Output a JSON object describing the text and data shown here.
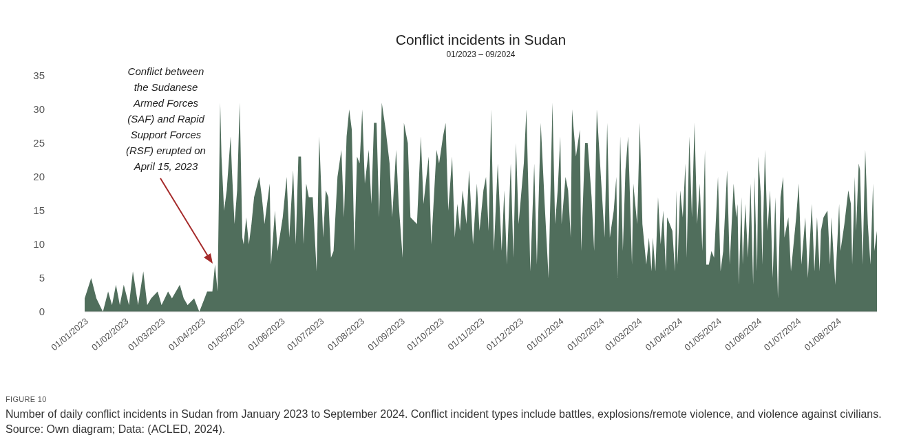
{
  "chart_data": {
    "type": "area",
    "title": "Conflict incidents in Sudan",
    "subtitle": "01/2023 – 09/2024",
    "annotations": [
      "Conflict between the Sudanese Armed Forces (SAF) and Rapid Support Forces (RSF) erupted on April 15, 2023",
      "FIGURE 10",
      "Number of daily conflict incidents in Sudan from January 2023 to September 2024. Conflict incident types include battles, explosions/remote violence, and violence against civilians. Source: Own diagram; Data: (ACLED, 2024)."
    ],
    "x": [
      "2023-01-01",
      "2023-01-06",
      "2023-01-10",
      "2023-01-15",
      "2023-01-19",
      "2023-01-22",
      "2023-01-25",
      "2023-01-28",
      "2023-01-31",
      "2023-02-04",
      "2023-02-07",
      "2023-02-11",
      "2023-02-15",
      "2023-02-18",
      "2023-02-21",
      "2023-02-26",
      "2023-03-01",
      "2023-03-06",
      "2023-03-09",
      "2023-03-15",
      "2023-03-18",
      "2023-03-21",
      "2023-03-26",
      "2023-03-30",
      "2023-04-03",
      "2023-04-05",
      "2023-04-09",
      "2023-04-11",
      "2023-04-13",
      "2023-04-15",
      "2023-04-16",
      "2023-04-18",
      "2023-04-20",
      "2023-04-23",
      "2023-04-24",
      "2023-04-26",
      "2023-04-28",
      "2023-04-30",
      "2023-05-02",
      "2023-05-03",
      "2023-05-05",
      "2023-05-07",
      "2023-05-09",
      "2023-05-11",
      "2023-05-15",
      "2023-05-17",
      "2023-05-19",
      "2023-05-23",
      "2023-05-24",
      "2023-05-27",
      "2023-05-29",
      "2023-06-02",
      "2023-06-05",
      "2023-06-07",
      "2023-06-10",
      "2023-06-12",
      "2023-06-14",
      "2023-06-16",
      "2023-06-18",
      "2023-06-20",
      "2023-06-22",
      "2023-06-25",
      "2023-06-28",
      "2023-06-30",
      "2023-07-03",
      "2023-07-05",
      "2023-07-07",
      "2023-07-09",
      "2023-07-11",
      "2023-07-14",
      "2023-07-17",
      "2023-07-19",
      "2023-07-21",
      "2023-07-23",
      "2023-07-25",
      "2023-07-27",
      "2023-07-29",
      "2023-07-31",
      "2023-08-02",
      "2023-08-04",
      "2023-08-07",
      "2023-08-09",
      "2023-08-11",
      "2023-08-13",
      "2023-08-15",
      "2023-08-17",
      "2023-08-20",
      "2023-08-23",
      "2023-08-25",
      "2023-08-28",
      "2023-08-30",
      "2023-09-02",
      "2023-09-03",
      "2023-09-06",
      "2023-09-08",
      "2023-09-13",
      "2023-09-16",
      "2023-09-18",
      "2023-09-22",
      "2023-09-24",
      "2023-09-28",
      "2023-09-30",
      "2023-10-03",
      "2023-10-05",
      "2023-10-07",
      "2023-10-10",
      "2023-10-12",
      "2023-10-14",
      "2023-10-16",
      "2023-10-18",
      "2023-10-21",
      "2023-10-23",
      "2023-10-26",
      "2023-10-29",
      "2023-10-31",
      "2023-11-03",
      "2023-11-05",
      "2023-11-07",
      "2023-11-09",
      "2023-11-11",
      "2023-11-14",
      "2023-11-17",
      "2023-11-19",
      "2023-11-21",
      "2023-11-24",
      "2023-11-26",
      "2023-11-28",
      "2023-11-30",
      "2023-12-04",
      "2023-12-06",
      "2023-12-09",
      "2023-12-12",
      "2023-12-14",
      "2023-12-17",
      "2023-12-20",
      "2023-12-23",
      "2023-12-26",
      "2023-12-28",
      "2023-12-30",
      "2024-01-01",
      "2024-01-02",
      "2024-01-05",
      "2024-01-07",
      "2024-01-09",
      "2024-01-10",
      "2024-01-13",
      "2024-01-16",
      "2024-01-17",
      "2024-01-20",
      "2024-01-22",
      "2024-01-25",
      "2024-01-27",
      "2024-01-29",
      "2024-02-04",
      "2024-02-06",
      "2024-02-08",
      "2024-02-11",
      "2024-02-13",
      "2024-02-14",
      "2024-02-16",
      "2024-02-18",
      "2024-02-20",
      "2024-02-22",
      "2024-02-23",
      "2024-02-25",
      "2024-02-26",
      "2024-02-29",
      "2024-03-02",
      "2024-03-04",
      "2024-03-07",
      "2024-03-09",
      "2024-03-11",
      "2024-03-12",
      "2024-03-14",
      "2024-03-16",
      "2024-03-18",
      "2024-03-20",
      "2024-03-22",
      "2024-03-23",
      "2024-03-27",
      "2024-03-29",
      "2024-03-30",
      "2024-03-31",
      "2024-04-02",
      "2024-04-04",
      "2024-04-06",
      "2024-04-07",
      "2024-04-09",
      "2024-04-11",
      "2024-04-13",
      "2024-04-15",
      "2024-04-17",
      "2024-04-19",
      "2024-04-21",
      "2024-04-22",
      "2024-04-24",
      "2024-04-26",
      "2024-04-28",
      "2024-05-01",
      "2024-05-03",
      "2024-05-05",
      "2024-05-08",
      "2024-05-10",
      "2024-05-13",
      "2024-05-15",
      "2024-05-16",
      "2024-05-17",
      "2024-05-19",
      "2024-05-20",
      "2024-05-22",
      "2024-05-24",
      "2024-05-26",
      "2024-05-28",
      "2024-05-29",
      "2024-05-31",
      "2024-06-01",
      "2024-06-03",
      "2024-06-04",
      "2024-06-06",
      "2024-06-08",
      "2024-06-10",
      "2024-06-12",
      "2024-06-14",
      "2024-06-16",
      "2024-06-18",
      "2024-06-20",
      "2024-06-21",
      "2024-06-24",
      "2024-06-26",
      "2024-06-30",
      "2024-07-02",
      "2024-07-04",
      "2024-07-07",
      "2024-07-09",
      "2024-07-12",
      "2024-07-14",
      "2024-07-16",
      "2024-07-18",
      "2024-07-19",
      "2024-07-21",
      "2024-07-24",
      "2024-07-26",
      "2024-07-27",
      "2024-07-30",
      "2024-08-02",
      "2024-08-03",
      "2024-08-06",
      "2024-08-09",
      "2024-08-11",
      "2024-08-12",
      "2024-08-14",
      "2024-08-15",
      "2024-08-17",
      "2024-08-18",
      "2024-08-20",
      "2024-08-22",
      "2024-08-24",
      "2024-08-26",
      "2024-08-28",
      "2024-08-29",
      "2024-08-31"
    ],
    "series": [
      {
        "color": "#163d25",
        "values": [
          2,
          5,
          2,
          0,
          3,
          1,
          4,
          1,
          4,
          1,
          6,
          1,
          6,
          1,
          2,
          3,
          1,
          3,
          2,
          4,
          2,
          1,
          2,
          0,
          2,
          3,
          3,
          7,
          3,
          31,
          23,
          15,
          18,
          26,
          21,
          13,
          18,
          31,
          11,
          10,
          14,
          10,
          13,
          17,
          20,
          17,
          13,
          19,
          7,
          15,
          9,
          14,
          20,
          11,
          21,
          10,
          23,
          23,
          10,
          19,
          17,
          17,
          6,
          26,
          11,
          18,
          17,
          8,
          9,
          20,
          24,
          14,
          26,
          30,
          27,
          9,
          23,
          22,
          30,
          19,
          24,
          16,
          28,
          28,
          14,
          31,
          27,
          22,
          14,
          24,
          16,
          8,
          28,
          25,
          14,
          13,
          26,
          16,
          23,
          10,
          24,
          22,
          26,
          28,
          15,
          23,
          11,
          16,
          12,
          18,
          13,
          21,
          10,
          19,
          12,
          18,
          20,
          12,
          30,
          9,
          22,
          9,
          18,
          7,
          22,
          8,
          25,
          13,
          22,
          30,
          6,
          22,
          7,
          28,
          16,
          5,
          31,
          13,
          18,
          26,
          13,
          20,
          18,
          11,
          30,
          23,
          27,
          9,
          25,
          25,
          17,
          9,
          30,
          11,
          28,
          11,
          15,
          20,
          5,
          26,
          9,
          21,
          26,
          20,
          7,
          19,
          13,
          28,
          13,
          7,
          11,
          6,
          11,
          6,
          17,
          10,
          15,
          6,
          14,
          12,
          6,
          18,
          7,
          18,
          14,
          22,
          8,
          26,
          14,
          28,
          13,
          19,
          9,
          24,
          7,
          7,
          9,
          8,
          20,
          6,
          9,
          21,
          7,
          19,
          14,
          16,
          4,
          17,
          7,
          16,
          8,
          19,
          4,
          20,
          6,
          23,
          17,
          7,
          24,
          12,
          18,
          5,
          17,
          2,
          17,
          20,
          11,
          14,
          6,
          14,
          19,
          7,
          14,
          5,
          16,
          6,
          14,
          6,
          12,
          14,
          15,
          7,
          14,
          4,
          16,
          9,
          13,
          18,
          16,
          7,
          20,
          12,
          22,
          21,
          7,
          24,
          13,
          7,
          19,
          9,
          12
        ]
      }
    ],
    "xlim": [
      "2023-01-01",
      "2024-08-31"
    ],
    "xticks": [
      {
        "value": "2023-01-01",
        "label": "01/01/2023"
      },
      {
        "value": "2023-02-01",
        "label": "01/02/2023"
      },
      {
        "value": "2023-03-01",
        "label": "01/03/2023"
      },
      {
        "value": "2023-04-01",
        "label": "01/04/2023"
      },
      {
        "value": "2023-05-01",
        "label": "01/05/2023"
      },
      {
        "value": "2023-06-01",
        "label": "01/06/2023"
      },
      {
        "value": "2023-07-01",
        "label": "01/07/2023"
      },
      {
        "value": "2023-08-01",
        "label": "01/08/2023"
      },
      {
        "value": "2023-09-01",
        "label": "01/09/2023"
      },
      {
        "value": "2023-10-01",
        "label": "01/10/2023"
      },
      {
        "value": "2023-11-01",
        "label": "01/11/2023"
      },
      {
        "value": "2023-12-01",
        "label": "01/12/2023"
      },
      {
        "value": "2024-01-01",
        "label": "01/01/2024"
      },
      {
        "value": "2024-02-01",
        "label": "01/02/2024"
      },
      {
        "value": "2024-03-01",
        "label": "01/03/2024"
      },
      {
        "value": "2024-04-01",
        "label": "01/04/2024"
      },
      {
        "value": "2024-05-01",
        "label": "01/05/2024"
      },
      {
        "value": "2024-06-01",
        "label": "01/06/2024"
      },
      {
        "value": "2024-07-01",
        "label": "01/07/2024"
      },
      {
        "value": "2024-08-01",
        "label": "01/08/2024"
      }
    ],
    "ylim": [
      0,
      35
    ],
    "yticks": [
      0,
      5,
      10,
      15,
      20,
      25,
      30,
      35
    ]
  }
}
